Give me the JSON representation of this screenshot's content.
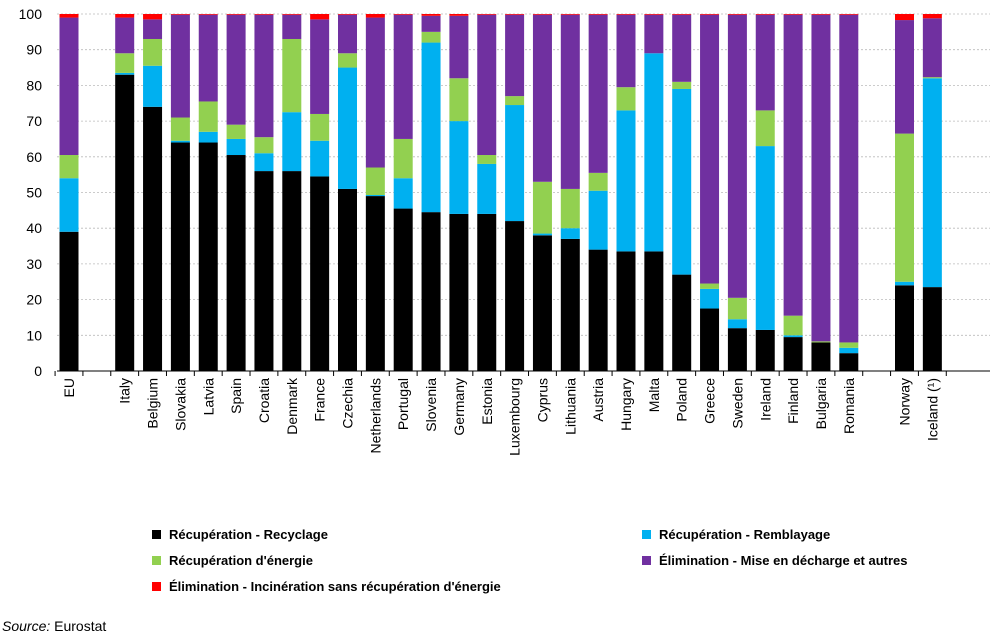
{
  "chart_data": {
    "type": "bar",
    "stacked": true,
    "ylim": [
      0,
      100
    ],
    "yticks": [
      0,
      10,
      20,
      30,
      40,
      50,
      60,
      70,
      80,
      90,
      100
    ],
    "grid": true,
    "legend_position": "bottom",
    "categories": [
      "EU",
      "Italy",
      "Belgium",
      "Slovakia",
      "Latvia",
      "Spain",
      "Croatia",
      "Denmark",
      "France",
      "Czechia",
      "Netherlands",
      "Portugal",
      "Slovenia",
      "Germany",
      "Estonia",
      "Luxembourg",
      "Cyprus",
      "Lithuania",
      "Austria",
      "Hungary",
      "Malta",
      "Poland",
      "Greece",
      "Sweden",
      "Ireland",
      "Finland",
      "Bulgaria",
      "Romania",
      "Norway",
      "Iceland (¹)"
    ],
    "series": [
      {
        "name": "Récupération - Recyclage",
        "color": "#000000",
        "values": [
          39,
          83,
          74,
          64,
          64,
          60.5,
          56,
          56,
          54.5,
          51,
          49,
          45.5,
          44.5,
          44,
          44,
          42,
          38,
          37,
          34,
          33.5,
          33.5,
          27,
          17.5,
          12,
          11.5,
          9.5,
          8,
          5,
          24,
          23.5
        ]
      },
      {
        "name": "Récupération - Remblayage",
        "color": "#00b0f0",
        "values": [
          15,
          0.5,
          11.5,
          0.5,
          3,
          4.5,
          5,
          16.5,
          10,
          34,
          0.3,
          8.5,
          47.5,
          26,
          14,
          32.5,
          0.5,
          3,
          16.5,
          39.5,
          55.5,
          52,
          5.5,
          2.5,
          51.5,
          0.5,
          0,
          1.5,
          1,
          58.5
        ]
      },
      {
        "name": "Récupération d'énergie",
        "color": "#92d050",
        "values": [
          6.5,
          5.5,
          7.5,
          6.5,
          8.5,
          4,
          4.5,
          20.5,
          7.5,
          4,
          7.7,
          11,
          3,
          12,
          2.5,
          2.5,
          14.5,
          11,
          5,
          6.5,
          0,
          2,
          1.5,
          6,
          10,
          5.5,
          0.3,
          1.5,
          41.5,
          0.3
        ]
      },
      {
        "name": "Élimination - Mise en décharge et autres",
        "color": "#7030a0",
        "values": [
          38.5,
          10,
          5.5,
          28.8,
          24.3,
          30.8,
          34.3,
          6.8,
          26.5,
          10.8,
          42,
          34.8,
          4.5,
          17.5,
          39.3,
          22.8,
          46.8,
          48.8,
          44.3,
          20.3,
          10.8,
          18.8,
          75.3,
          79.3,
          26.8,
          84.3,
          91.5,
          91.8,
          31.8,
          16.5
        ]
      },
      {
        "name": "Élimination - Incinération sans récupération d'énergie",
        "color": "#ff0000",
        "values": [
          1,
          1,
          1.5,
          0.2,
          0.2,
          0.2,
          0.2,
          0.2,
          1.5,
          0.2,
          1,
          0.2,
          0.5,
          0.5,
          0.2,
          0.2,
          0.2,
          0.2,
          0.2,
          0.2,
          0.2,
          0.2,
          0.2,
          0.2,
          0.2,
          0.2,
          0.2,
          0.2,
          1.7,
          1.2
        ]
      }
    ]
  },
  "source_label": "Source:",
  "source_value": " Eurostat"
}
